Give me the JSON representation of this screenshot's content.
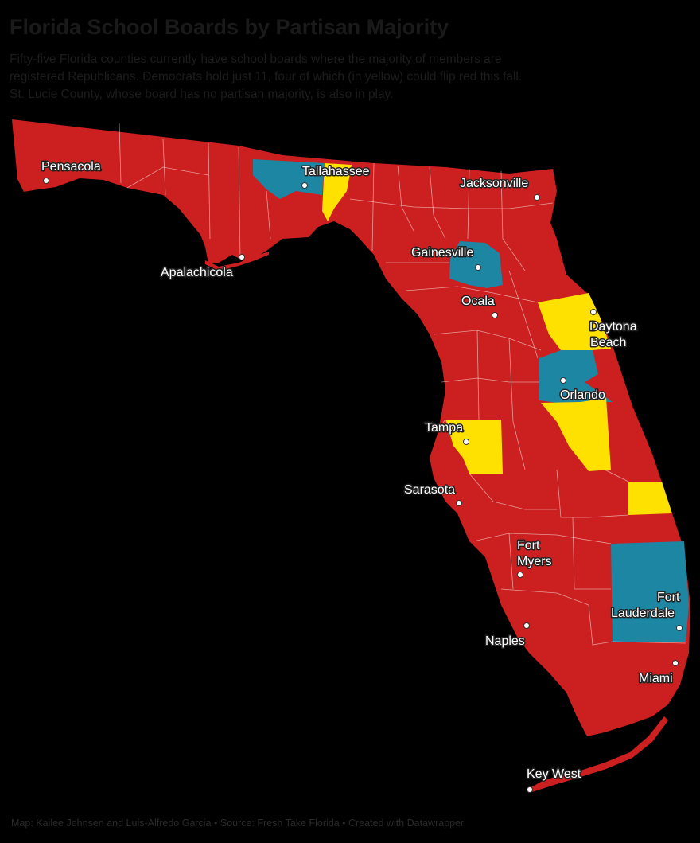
{
  "header": {
    "title": "Florida School Boards by Partisan Majority",
    "subtitle_lines": [
      "Fifty-five Florida counties currently have school boards where the majority of members are",
      "registered Republicans. Democrats hold just 11, four of which (in yellow) could flip red this fall.",
      "St. Lucie County, whose board has no partisan majority, is also in play."
    ]
  },
  "colors": {
    "republican": "#cc1f20",
    "democrat": "#1d86a2",
    "in_play": "#ffe100",
    "background": "#000000"
  },
  "cities": {
    "pensacola": "Pensacola",
    "tallahassee": "Tallahassee",
    "jacksonville": "Jacksonville",
    "apalachicola": "Apalachicola",
    "gainesville": "Gainesville",
    "ocala": "Ocala",
    "daytona_1": "Daytona",
    "daytona_2": "Beach",
    "orlando": "Orlando",
    "tampa": "Tampa",
    "sarasota": "Sarasota",
    "fort_myers_1": "Fort",
    "fort_myers_2": "Myers",
    "fort_lauderdale_1": "Fort",
    "fort_lauderdale_2": "Lauderdale",
    "naples": "Naples",
    "miami": "Miami",
    "key_west": "Key West"
  },
  "footer": {
    "credit": "Map: Kailee Johnsen and Luis-Alfredo Garcia • Source: Fresh Take Florida • Created with Datawrapper"
  }
}
